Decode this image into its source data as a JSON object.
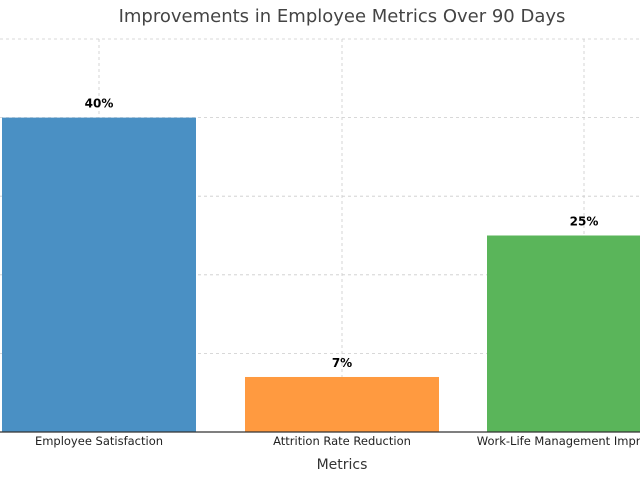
{
  "chart_data": {
    "type": "bar",
    "title": "Improvements in Employee Metrics Over 90 Days",
    "xlabel": "Metrics",
    "ylabel": "",
    "categories": [
      "Employee Satisfaction",
      "Attrition Rate Reduction",
      "Work-Life Management Improvement"
    ],
    "values": [
      40,
      7,
      25
    ],
    "data_labels": [
      "40%",
      "7%",
      "25%"
    ],
    "colors": [
      "#4a90c4",
      "#ff9a40",
      "#5ab55a"
    ],
    "ylim": [
      0,
      50
    ],
    "grid": true
  }
}
